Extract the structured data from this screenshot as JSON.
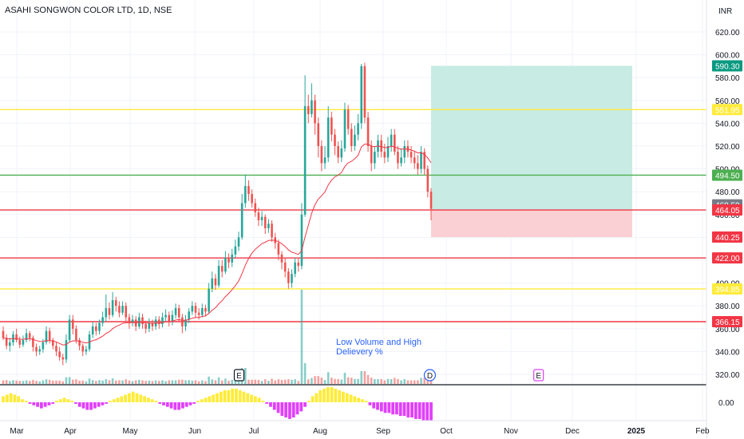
{
  "header": {
    "symbol_title": "ASAHI SONGWON COLOR LTD, 1D, NSE",
    "currency": "INR"
  },
  "chart_data": {
    "type": "candlestick",
    "y_range": [
      310,
      630
    ],
    "price_ticks": [
      620,
      600,
      580,
      560,
      540,
      520,
      500,
      480,
      460,
      440,
      420,
      400,
      380,
      360,
      340,
      320
    ],
    "price_tick_labels": [
      "620.00",
      "600.00",
      "580.00",
      "560.00",
      "540.00",
      "520.00",
      "500.00",
      "480.00",
      "460.00",
      "440.00",
      "420.00",
      "400.00",
      "380.00",
      "360.00",
      "340.00",
      "320.00"
    ],
    "oscillator_tick_label": "0.00",
    "x_labels": [
      "Mar",
      "Apr",
      "May",
      "Jun",
      "Jul",
      "Aug",
      "Sep",
      "Oct",
      "Nov",
      "Dec",
      "2025",
      "Feb"
    ],
    "horizontal_levels": [
      {
        "value": 551.95,
        "label": "551.95",
        "color": "#ffeb3b",
        "text_color": "#131722"
      },
      {
        "value": 494.5,
        "label": "494.50",
        "color": "#4caf50",
        "text_color": "#ffffff"
      },
      {
        "value": 464.0,
        "label": "464.00",
        "color": "#f23645",
        "text_color": "#ffffff"
      },
      {
        "value": 422.0,
        "label": "422.00",
        "color": "#f23645",
        "text_color": "#ffffff"
      },
      {
        "value": 394.85,
        "label": "394.85",
        "color": "#ffeb3b",
        "text_color": "#131722"
      },
      {
        "value": 366.15,
        "label": "366.15",
        "color": "#f23645",
        "text_color": "#ffffff"
      }
    ],
    "price_badges": [
      {
        "value": 590.3,
        "label": "590.30",
        "color": "#089981"
      },
      {
        "value": 468.5,
        "label": "468.50",
        "color": "#787b86"
      },
      {
        "value": 464.05,
        "label": "464.05",
        "color": "#f23645"
      },
      {
        "value": 440.25,
        "label": "440.25",
        "color": "#f23645"
      }
    ],
    "position": {
      "entry": 464.05,
      "target": 590.3,
      "stop": 440.25,
      "profit_color": "#c8ebe4",
      "loss_color": "#fbd0d4"
    },
    "annotation": {
      "lines": [
        "Low Volume and High",
        "Delievery %"
      ],
      "color": "#2962ff"
    },
    "event_markers": [
      {
        "label": "E",
        "color": "#131722",
        "month_index": 3.75
      },
      {
        "label": "D",
        "color": "#2962ff",
        "month_index": 6.74
      },
      {
        "label": "E",
        "color": "#e040fb",
        "month_index": 8.45
      }
    ],
    "colors": {
      "up": "#26a69a",
      "down": "#ef5350",
      "ma": "#f23645",
      "osc_pos": "#ffeb3b",
      "osc_neg": "#e040fb"
    },
    "candles": [
      [
        358,
        352,
        362,
        350
      ],
      [
        352,
        345,
        355,
        342
      ],
      [
        345,
        348,
        352,
        340
      ],
      [
        348,
        355,
        358,
        345
      ],
      [
        355,
        350,
        360,
        348
      ],
      [
        350,
        346,
        353,
        343
      ],
      [
        346,
        350,
        354,
        344
      ],
      [
        350,
        356,
        360,
        348
      ],
      [
        356,
        352,
        358,
        349
      ],
      [
        352,
        344,
        354,
        340
      ],
      [
        344,
        340,
        347,
        336
      ],
      [
        340,
        342,
        345,
        337
      ],
      [
        342,
        348,
        351,
        339
      ],
      [
        348,
        358,
        362,
        346
      ],
      [
        358,
        350,
        361,
        347
      ],
      [
        350,
        345,
        352,
        342
      ],
      [
        345,
        340,
        348,
        336
      ],
      [
        340,
        335,
        344,
        332
      ],
      [
        335,
        333,
        338,
        328
      ],
      [
        333,
        350,
        355,
        330
      ],
      [
        350,
        368,
        372,
        348
      ],
      [
        368,
        360,
        372,
        355
      ],
      [
        360,
        350,
        363,
        347
      ],
      [
        350,
        345,
        352,
        341
      ],
      [
        345,
        340,
        347,
        336
      ],
      [
        340,
        342,
        345,
        337
      ],
      [
        342,
        355,
        358,
        340
      ],
      [
        355,
        362,
        366,
        352
      ],
      [
        362,
        358,
        365,
        354
      ],
      [
        358,
        365,
        368,
        355
      ],
      [
        365,
        370,
        375,
        362
      ],
      [
        370,
        378,
        390,
        366
      ],
      [
        378,
        372,
        383,
        368
      ],
      [
        372,
        385,
        392,
        370
      ],
      [
        385,
        380,
        388,
        375
      ],
      [
        380,
        374,
        384,
        370
      ],
      [
        374,
        380,
        384,
        372
      ],
      [
        380,
        370,
        383,
        366
      ],
      [
        370,
        365,
        373,
        360
      ],
      [
        365,
        368,
        372,
        362
      ],
      [
        368,
        362,
        371,
        358
      ],
      [
        362,
        370,
        374,
        360
      ],
      [
        370,
        364,
        373,
        360
      ],
      [
        364,
        360,
        367,
        356
      ],
      [
        360,
        365,
        369,
        357
      ],
      [
        365,
        362,
        368,
        358
      ],
      [
        362,
        368,
        371,
        359
      ],
      [
        368,
        364,
        371,
        360
      ],
      [
        364,
        370,
        374,
        361
      ],
      [
        370,
        372,
        377,
        366
      ],
      [
        372,
        366,
        375,
        362
      ],
      [
        366,
        372,
        376,
        363
      ],
      [
        372,
        378,
        382,
        369
      ],
      [
        378,
        370,
        381,
        366
      ],
      [
        370,
        362,
        373,
        356
      ],
      [
        362,
        368,
        372,
        358
      ],
      [
        368,
        375,
        378,
        365
      ],
      [
        375,
        380,
        384,
        372
      ],
      [
        380,
        374,
        383,
        370
      ],
      [
        374,
        372,
        378,
        368
      ],
      [
        372,
        378,
        382,
        370
      ],
      [
        378,
        375,
        381,
        371
      ],
      [
        375,
        395,
        400,
        373
      ],
      [
        395,
        404,
        410,
        392
      ],
      [
        404,
        398,
        408,
        394
      ],
      [
        398,
        415,
        420,
        396
      ],
      [
        415,
        410,
        420,
        405
      ],
      [
        410,
        422,
        428,
        408
      ],
      [
        422,
        418,
        426,
        413
      ],
      [
        418,
        425,
        430,
        414
      ],
      [
        425,
        432,
        438,
        422
      ],
      [
        432,
        440,
        445,
        428
      ],
      [
        440,
        470,
        478,
        438
      ],
      [
        470,
        485,
        495,
        466
      ],
      [
        485,
        478,
        490,
        472
      ],
      [
        478,
        470,
        482,
        466
      ],
      [
        470,
        462,
        474,
        458
      ],
      [
        462,
        455,
        466,
        450
      ],
      [
        455,
        458,
        463,
        450
      ],
      [
        458,
        448,
        460,
        443
      ],
      [
        448,
        452,
        456,
        444
      ],
      [
        452,
        440,
        455,
        436
      ],
      [
        440,
        435,
        444,
        430
      ],
      [
        435,
        425,
        438,
        420
      ],
      [
        425,
        418,
        428,
        412
      ],
      [
        418,
        410,
        422,
        405
      ],
      [
        410,
        400,
        413,
        395
      ],
      [
        400,
        408,
        412,
        396
      ],
      [
        408,
        418,
        422,
        405
      ],
      [
        418,
        415,
        422,
        410
      ],
      [
        415,
        460,
        470,
        412
      ],
      [
        460,
        555,
        582,
        458
      ],
      [
        555,
        548,
        565,
        540
      ],
      [
        548,
        560,
        575,
        545
      ],
      [
        560,
        540,
        565,
        530
      ],
      [
        540,
        520,
        545,
        510
      ],
      [
        520,
        505,
        525,
        498
      ],
      [
        505,
        510,
        520,
        500
      ],
      [
        510,
        545,
        555,
        506
      ],
      [
        545,
        530,
        550,
        524
      ],
      [
        530,
        520,
        535,
        512
      ],
      [
        520,
        510,
        524,
        505
      ],
      [
        510,
        518,
        525,
        506
      ],
      [
        518,
        552,
        558,
        515
      ],
      [
        552,
        535,
        556,
        530
      ],
      [
        535,
        520,
        540,
        515
      ],
      [
        520,
        530,
        538,
        516
      ],
      [
        530,
        540,
        548,
        525
      ],
      [
        540,
        590,
        592,
        535
      ],
      [
        590,
        545,
        593,
        540
      ],
      [
        545,
        520,
        550,
        515
      ],
      [
        520,
        505,
        525,
        498
      ],
      [
        505,
        515,
        520,
        500
      ],
      [
        515,
        525,
        530,
        510
      ],
      [
        525,
        515,
        530,
        510
      ],
      [
        515,
        510,
        522,
        505
      ],
      [
        510,
        520,
        528,
        506
      ],
      [
        520,
        530,
        535,
        515
      ],
      [
        530,
        515,
        535,
        512
      ],
      [
        515,
        505,
        520,
        500
      ],
      [
        505,
        510,
        518,
        502
      ],
      [
        510,
        520,
        525,
        505
      ],
      [
        520,
        515,
        525,
        510
      ],
      [
        515,
        510,
        520,
        505
      ],
      [
        510,
        505,
        515,
        500
      ],
      [
        505,
        500,
        512,
        495
      ],
      [
        500,
        515,
        520,
        496
      ],
      [
        515,
        500,
        518,
        495
      ],
      [
        500,
        480,
        503,
        475
      ],
      [
        480,
        465,
        483,
        455
      ]
    ],
    "oscillator": [
      4,
      5,
      6,
      5,
      4,
      2,
      1,
      -1,
      -2,
      -3,
      -4,
      -3,
      -2,
      -1,
      1,
      2,
      3,
      2,
      1,
      -1,
      -3,
      -4,
      -5,
      -5,
      -4,
      -3,
      -2,
      -1,
      1,
      2,
      3,
      4,
      5,
      6,
      7,
      6,
      5,
      4,
      3,
      2,
      1,
      -1,
      -2,
      -3,
      -4,
      -5,
      -5,
      -4,
      -3,
      -2,
      -1,
      1,
      2,
      3,
      4,
      5,
      6,
      7,
      8,
      8,
      9,
      9,
      8,
      7,
      6,
      5,
      4,
      3,
      1,
      -1,
      -3,
      -5,
      -7,
      -9,
      -10,
      -11,
      -10,
      -8,
      -6,
      -3,
      1,
      4,
      6,
      8,
      9,
      10,
      10,
      9,
      8,
      7,
      6,
      5,
      4,
      3,
      2,
      1,
      -2,
      -4,
      -5,
      -6,
      -7,
      -7,
      -8,
      -8,
      -9,
      -9,
      -10,
      -10,
      -11,
      -11,
      -12,
      -12,
      -12
    ]
  }
}
